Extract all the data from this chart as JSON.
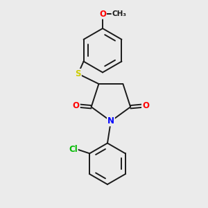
{
  "background_color": "#ebebeb",
  "bond_color": "#1a1a1a",
  "atom_colors": {
    "N": "#0000ff",
    "O": "#ff0000",
    "S": "#cccc00",
    "Cl": "#00bb00",
    "C": "#1a1a1a"
  },
  "figsize": [
    3.0,
    3.0
  ],
  "dpi": 100,
  "lw": 1.4,
  "fontsize": 8.5
}
